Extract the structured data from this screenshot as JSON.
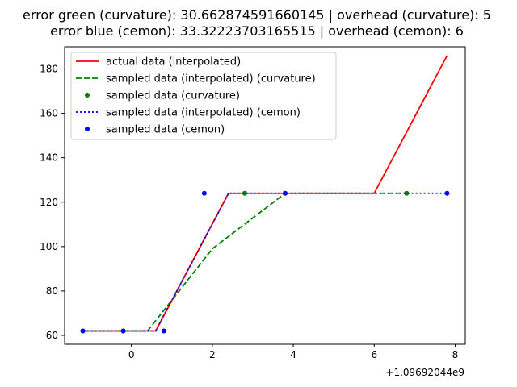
{
  "chart_data": {
    "type": "line",
    "title_lines": [
      "error green (curvature): 30.662874591660145 | overhead (curvature): 5",
      "error blue (cemon): 33.32223703165515 | overhead (cemon): 6"
    ],
    "xlim": [
      -1.65,
      8.25
    ],
    "ylim": [
      56,
      190
    ],
    "x_ticks": [
      0,
      2,
      4,
      6,
      8
    ],
    "y_ticks": [
      60,
      80,
      100,
      120,
      140,
      160,
      180
    ],
    "x_offset_label": "+1.09692044e9",
    "grid": false,
    "legend_position": "top-left",
    "series": [
      {
        "name": "actual data (interpolated)",
        "kind": "line",
        "dash": "solid",
        "color": "#ff0000",
        "x": [
          -1.2,
          0.6,
          2.4,
          6.0,
          7.8
        ],
        "y": [
          62,
          62,
          124,
          124,
          186
        ]
      },
      {
        "name": "sampled data (interpolated) (curvature)",
        "kind": "line",
        "dash": "dashed",
        "color": "#008000",
        "x": [
          -1.2,
          0.4,
          2.0,
          3.8,
          6.8
        ],
        "y": [
          62,
          62,
          99,
          124,
          124
        ]
      },
      {
        "name": "sampled data (curvature)",
        "kind": "scatter",
        "color": "#008000",
        "x": [
          -1.2,
          -0.2,
          2.8,
          6.8
        ],
        "y": [
          62,
          62,
          124,
          124
        ]
      },
      {
        "name": "sampled data (interpolated) (cemon)",
        "kind": "line",
        "dash": "dotted",
        "color": "#0000ff",
        "x": [
          -1.2,
          0.6,
          2.4,
          7.8
        ],
        "y": [
          62,
          62,
          124,
          124
        ]
      },
      {
        "name": "sampled data (cemon)",
        "kind": "scatter",
        "color": "#0000ff",
        "x": [
          -1.2,
          -0.2,
          0.8,
          1.8,
          3.8,
          7.8
        ],
        "y": [
          62,
          62,
          62,
          124,
          124,
          124
        ]
      }
    ]
  }
}
